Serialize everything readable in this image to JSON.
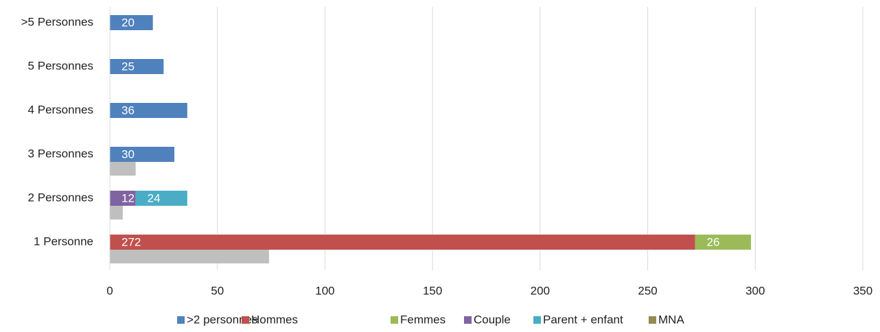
{
  "chart_data": {
    "type": "bar",
    "orientation": "horizontal",
    "stacked": true,
    "categories": [
      "1 Personne",
      "2 Personnes",
      "3 Personnes",
      "4 Personnes",
      "5 Personnes",
      ">5 Personnes"
    ],
    "series": [
      {
        "name": ">2 personnes",
        "color": "#4f81bd",
        "values": [
          null,
          null,
          30,
          36,
          25,
          20
        ]
      },
      {
        "name": "Hommes",
        "color": "#c0504d",
        "values": [
          272,
          null,
          null,
          null,
          null,
          null
        ]
      },
      {
        "name": "Femmes",
        "color": "#9bbb59",
        "values": [
          26,
          null,
          null,
          null,
          null,
          null
        ]
      },
      {
        "name": "Couple",
        "color": "#8064a2",
        "values": [
          null,
          12,
          null,
          null,
          null,
          null
        ]
      },
      {
        "name": "Parent + enfant",
        "color": "#4bacc6",
        "values": [
          null,
          24,
          null,
          null,
          null,
          null
        ]
      },
      {
        "name": "MNA",
        "color": "#948a54",
        "values": [
          null,
          null,
          null,
          null,
          null,
          null
        ]
      },
      {
        "color": "#bfbfbf",
        "values": [
          74,
          6,
          12,
          null,
          null,
          null
        ]
      }
    ],
    "xlim": [
      0,
      350
    ],
    "xticks": [
      0,
      50,
      100,
      150,
      200,
      250,
      300,
      350
    ],
    "grid": true,
    "legend": "bottom"
  }
}
